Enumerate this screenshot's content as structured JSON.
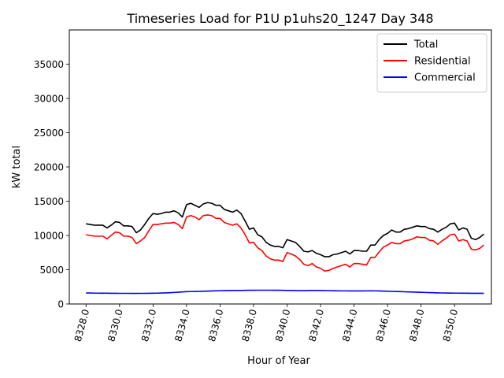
{
  "chart_data": {
    "type": "line",
    "title": "Timeseries Load for P1U p1uhs20_1247  Day 348",
    "xlabel": "Hour of Year",
    "ylabel": "kW total",
    "xlim": [
      8327.0,
      8352.2
    ],
    "ylim": [
      0,
      40000
    ],
    "x_ticks": [
      8328,
      8330,
      8332,
      8334,
      8336,
      8338,
      8340,
      8342,
      8344,
      8346,
      8348,
      8350
    ],
    "x_tick_labels": [
      "8328.0",
      "8330.0",
      "8332.0",
      "8334.0",
      "8336.0",
      "8338.0",
      "8340.0",
      "8342.0",
      "8344.0",
      "8346.0",
      "8348.0",
      "8350.0"
    ],
    "y_ticks": [
      0,
      5000,
      10000,
      15000,
      20000,
      25000,
      30000,
      35000
    ],
    "y_tick_labels": [
      "0",
      "5000",
      "10000",
      "15000",
      "20000",
      "25000",
      "30000",
      "35000"
    ],
    "legend_position": "top-right",
    "x_start": 8328.0,
    "x_step": 0.25,
    "series": [
      {
        "name": "Total",
        "color": "#000000",
        "values": [
          11700,
          11600,
          11500,
          11500,
          11500,
          11100,
          11500,
          12000,
          11900,
          11400,
          11400,
          11300,
          10400,
          10800,
          11600,
          12500,
          13200,
          13100,
          13200,
          13400,
          13400,
          13600,
          13300,
          12700,
          14500,
          14700,
          14400,
          14100,
          14600,
          14800,
          14700,
          14400,
          14400,
          13800,
          13600,
          13400,
          13700,
          13200,
          12100,
          10900,
          11100,
          10100,
          9800,
          9000,
          8600,
          8400,
          8400,
          8200,
          9400,
          9200,
          9000,
          8400,
          7700,
          7600,
          7800,
          7400,
          7200,
          6900,
          6900,
          7200,
          7300,
          7500,
          7700,
          7300,
          7800,
          7800,
          7700,
          7700,
          8600,
          8600,
          9400,
          10000,
          10300,
          10800,
          10500,
          10500,
          10900,
          11000,
          11200,
          11400,
          11300,
          11300,
          11000,
          10900,
          10500,
          10900,
          11200,
          11700,
          11800,
          10800,
          11100,
          10900,
          9600,
          9400,
          9700,
          10200
        ]
      },
      {
        "name": "Residential",
        "color": "#ff0000",
        "values": [
          10100,
          10000,
          9900,
          9900,
          9900,
          9500,
          10000,
          10500,
          10400,
          9900,
          9900,
          9700,
          8800,
          9200,
          9700,
          10700,
          11600,
          11600,
          11700,
          11800,
          11800,
          11900,
          11600,
          11000,
          12700,
          12900,
          12700,
          12300,
          12900,
          13000,
          12900,
          12500,
          12500,
          11900,
          11700,
          11500,
          11700,
          11100,
          10100,
          8900,
          9000,
          8200,
          7800,
          7000,
          6600,
          6400,
          6400,
          6200,
          7500,
          7300,
          7000,
          6500,
          5800,
          5600,
          5900,
          5400,
          5200,
          4800,
          4900,
          5200,
          5400,
          5600,
          5800,
          5400,
          5900,
          5900,
          5800,
          5700,
          6800,
          6800,
          7600,
          8300,
          8600,
          9000,
          8800,
          8800,
          9200,
          9300,
          9500,
          9800,
          9700,
          9700,
          9300,
          9200,
          8700,
          9200,
          9600,
          10100,
          10200,
          9200,
          9400,
          9200,
          8000,
          7900,
          8100,
          8600
        ]
      },
      {
        "name": "Commercial",
        "color": "#0000ff",
        "values": [
          1600,
          1600,
          1580,
          1580,
          1570,
          1570,
          1560,
          1560,
          1550,
          1550,
          1550,
          1540,
          1540,
          1550,
          1550,
          1560,
          1570,
          1580,
          1600,
          1620,
          1650,
          1680,
          1720,
          1760,
          1800,
          1810,
          1820,
          1840,
          1860,
          1880,
          1900,
          1920,
          1940,
          1950,
          1960,
          1970,
          1970,
          1980,
          1990,
          2000,
          2000,
          2010,
          2010,
          2010,
          2010,
          2000,
          2000,
          1990,
          1980,
          1970,
          1960,
          1950,
          1950,
          1960,
          1970,
          1980,
          1970,
          1960,
          1940,
          1930,
          1920,
          1910,
          1910,
          1900,
          1900,
          1900,
          1900,
          1910,
          1920,
          1910,
          1900,
          1880,
          1860,
          1840,
          1820,
          1800,
          1780,
          1760,
          1740,
          1720,
          1700,
          1680,
          1660,
          1640,
          1620,
          1610,
          1600,
          1590,
          1580,
          1580,
          1570,
          1570,
          1560,
          1560,
          1560,
          1560
        ]
      }
    ]
  }
}
